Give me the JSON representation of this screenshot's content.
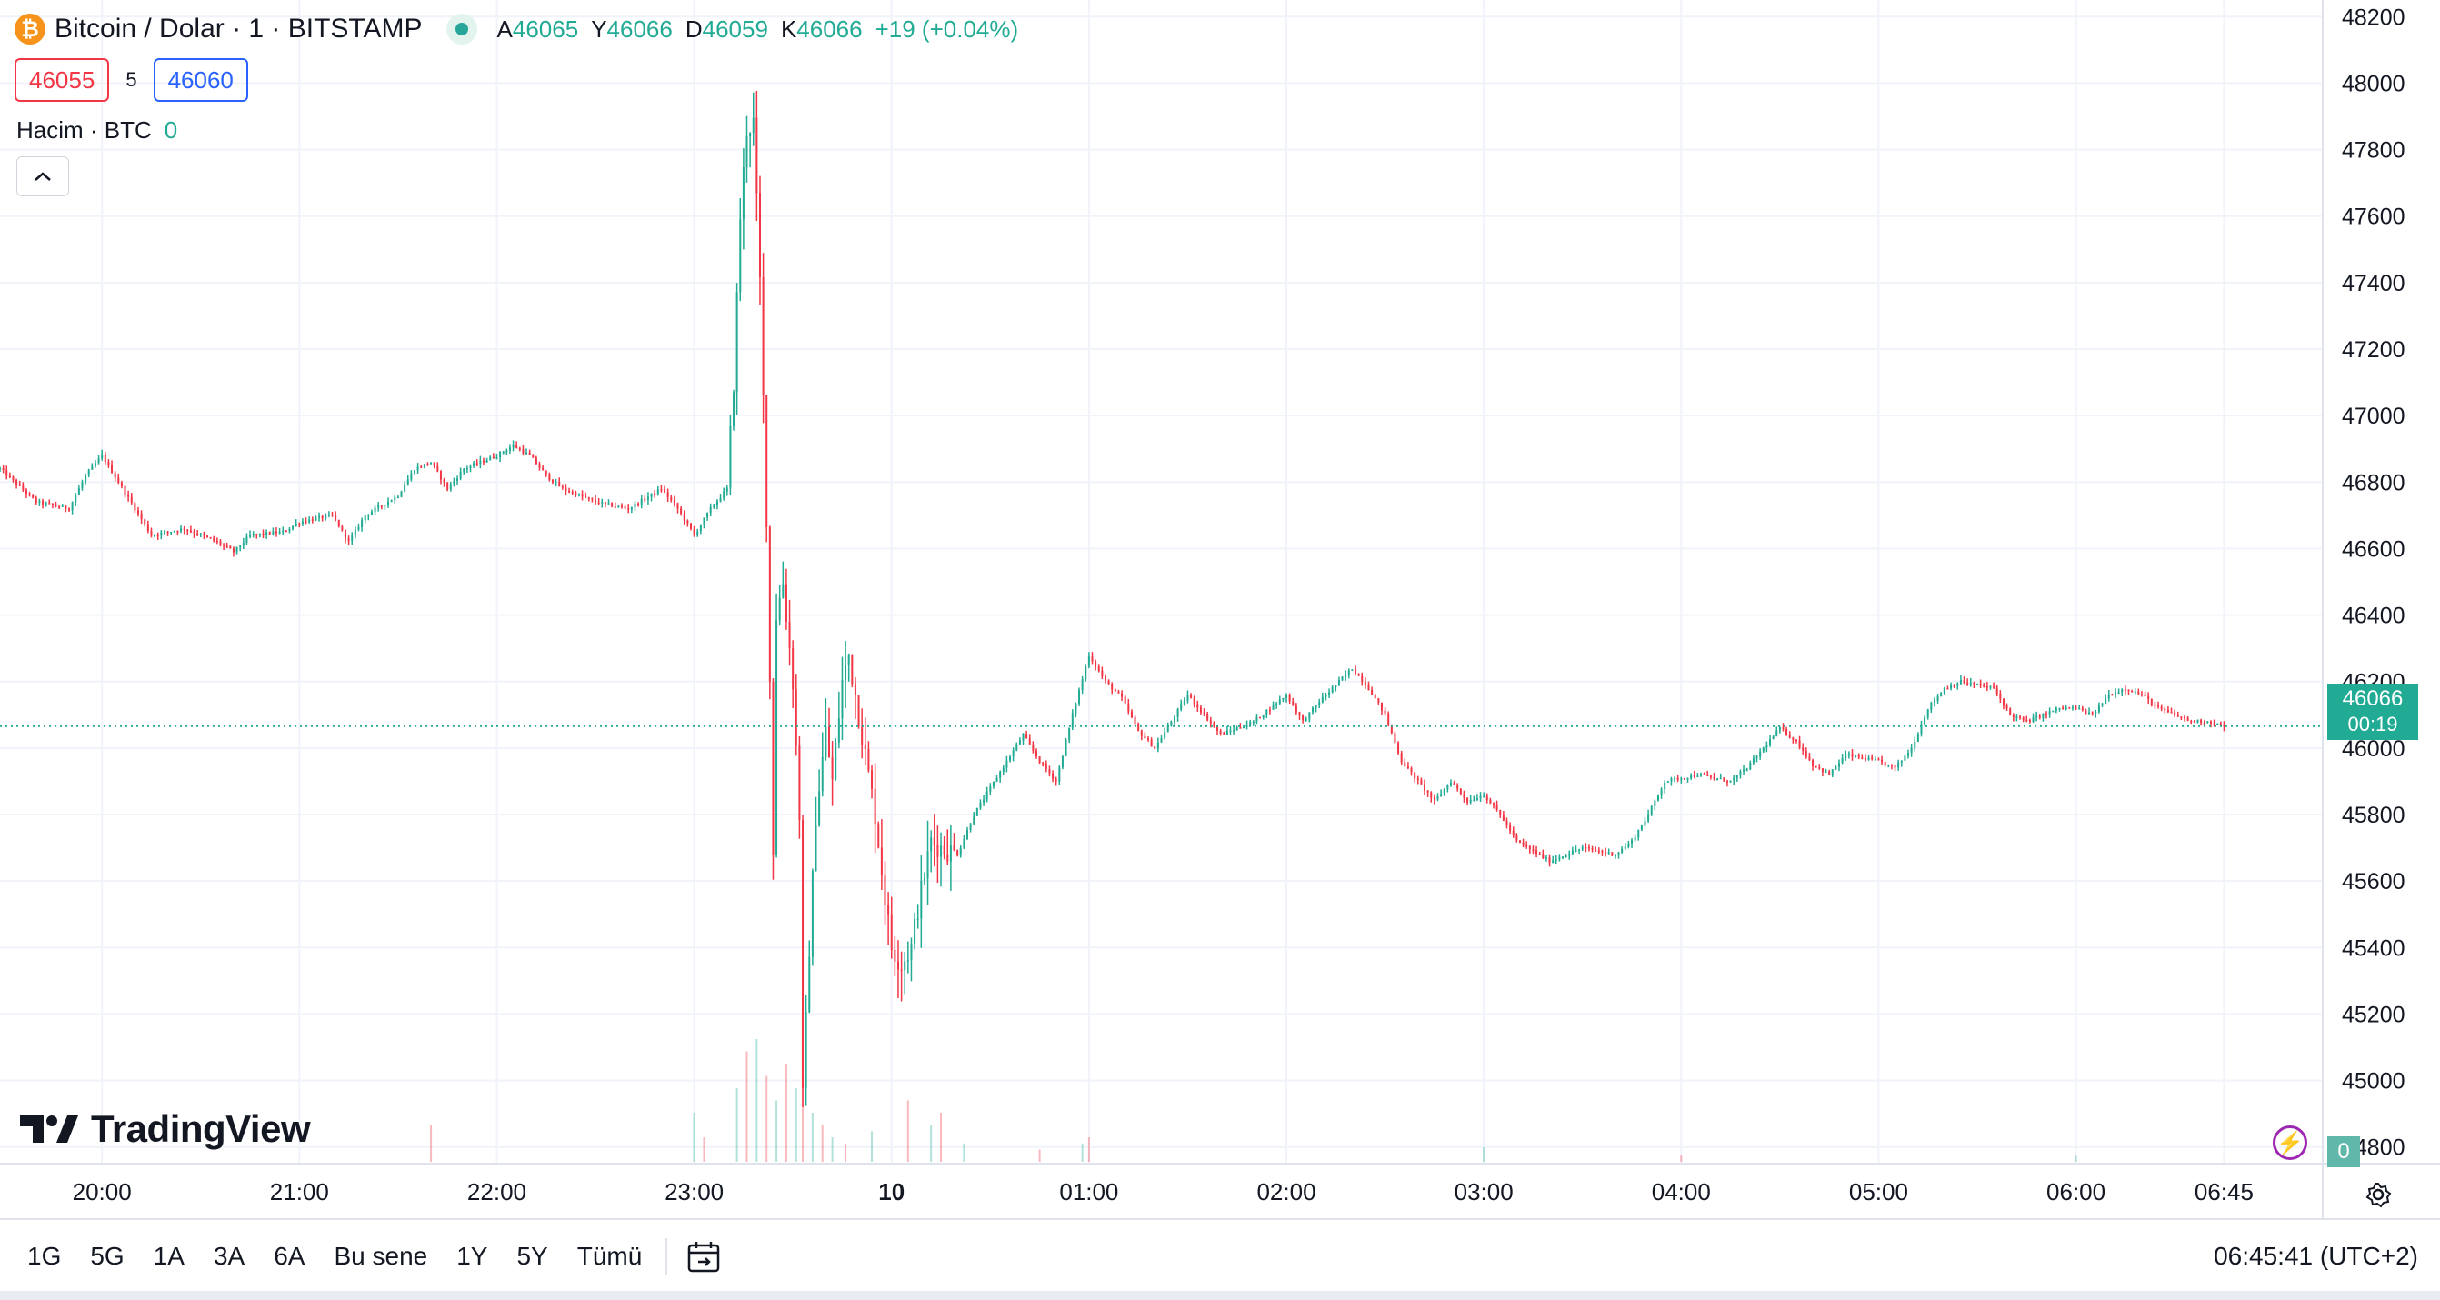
{
  "legend": {
    "symbol": "Bitcoin / Dolar · 1 · BITSTAMP",
    "symbol_icon": "bitcoin-icon",
    "open_label": "A",
    "open": "46065",
    "high_label": "Y",
    "high": "46066",
    "low_label": "D",
    "low": "46059",
    "close_label": "K",
    "close": "46066",
    "change": "+19 (+0.04%)",
    "sell_price": "46055",
    "spread": "5",
    "buy_price": "46060"
  },
  "volume_legend": {
    "label": "Hacim · BTC",
    "value": "0"
  },
  "collapse_icon": "chevron-up-icon",
  "logo": "TradingView",
  "price_label": {
    "value": "46066",
    "countdown": "00:19"
  },
  "volume_badge": "0",
  "range_buttons": [
    "1G",
    "5G",
    "1A",
    "3A",
    "6A",
    "Bu sene",
    "1Y",
    "5Y",
    "Tümü"
  ],
  "clock": "06:45:41 (UTC+2)",
  "colors": {
    "up": "#22ab94",
    "down": "#f23645",
    "grid": "#f0f3fa",
    "last_line": "#22ab94"
  },
  "chart_data": {
    "type": "candlestick",
    "symbol": "Bitcoin / Dolar",
    "exchange": "BITSTAMP",
    "interval": "1",
    "ylim": [
      44750,
      48250
    ],
    "y_ticks": [
      44800,
      45000,
      45200,
      45400,
      45600,
      45800,
      46000,
      46200,
      46400,
      46600,
      46800,
      47000,
      47200,
      47400,
      47600,
      47800,
      48000,
      48200
    ],
    "x_tick_labels": [
      "20:00",
      "21:00",
      "22:00",
      "23:00",
      "10",
      "01:00",
      "02:00",
      "03:00",
      "04:00",
      "05:00",
      "06:00",
      "06:45"
    ],
    "x_tick_minutes": [
      0,
      60,
      120,
      180,
      240,
      300,
      360,
      420,
      480,
      540,
      600,
      645
    ],
    "x_range_minutes": [
      -31,
      675
    ],
    "last_price": 46066,
    "price_anchors": [
      [
        -31,
        46840
      ],
      [
        -20,
        46740
      ],
      [
        -10,
        46720
      ],
      [
        -5,
        46820
      ],
      [
        0,
        46880
      ],
      [
        5,
        46800
      ],
      [
        10,
        46720
      ],
      [
        15,
        46640
      ],
      [
        20,
        46650
      ],
      [
        25,
        46660
      ],
      [
        35,
        46620
      ],
      [
        40,
        46590
      ],
      [
        45,
        46640
      ],
      [
        55,
        46650
      ],
      [
        60,
        46680
      ],
      [
        70,
        46700
      ],
      [
        75,
        46620
      ],
      [
        80,
        46700
      ],
      [
        90,
        46760
      ],
      [
        95,
        46840
      ],
      [
        100,
        46860
      ],
      [
        105,
        46780
      ],
      [
        110,
        46840
      ],
      [
        120,
        46880
      ],
      [
        125,
        46910
      ],
      [
        130,
        46880
      ],
      [
        135,
        46820
      ],
      [
        140,
        46780
      ],
      [
        150,
        46740
      ],
      [
        160,
        46720
      ],
      [
        170,
        46780
      ],
      [
        175,
        46720
      ],
      [
        180,
        46640
      ],
      [
        185,
        46720
      ],
      [
        190,
        46780
      ],
      [
        192,
        47100
      ],
      [
        194,
        47600
      ],
      [
        196,
        47860
      ],
      [
        198,
        47880
      ],
      [
        200,
        47400
      ],
      [
        202,
        46700
      ],
      [
        204,
        45700
      ],
      [
        205,
        46400
      ],
      [
        207,
        46500
      ],
      [
        210,
        46200
      ],
      [
        212,
        45800
      ],
      [
        213,
        44950
      ],
      [
        215,
        45400
      ],
      [
        217,
        45800
      ],
      [
        220,
        46050
      ],
      [
        222,
        45900
      ],
      [
        225,
        46200
      ],
      [
        227,
        46280
      ],
      [
        230,
        46100
      ],
      [
        235,
        45800
      ],
      [
        238,
        45550
      ],
      [
        240,
        45400
      ],
      [
        243,
        45350
      ],
      [
        246,
        45400
      ],
      [
        248,
        45520
      ],
      [
        252,
        45720
      ],
      [
        255,
        45700
      ],
      [
        260,
        45680
      ],
      [
        265,
        45800
      ],
      [
        270,
        45880
      ],
      [
        275,
        45960
      ],
      [
        280,
        46040
      ],
      [
        285,
        45960
      ],
      [
        290,
        45900
      ],
      [
        295,
        46100
      ],
      [
        300,
        46280
      ],
      [
        305,
        46200
      ],
      [
        310,
        46150
      ],
      [
        315,
        46050
      ],
      [
        320,
        46000
      ],
      [
        330,
        46160
      ],
      [
        335,
        46100
      ],
      [
        340,
        46040
      ],
      [
        350,
        46080
      ],
      [
        360,
        46160
      ],
      [
        365,
        46080
      ],
      [
        370,
        46140
      ],
      [
        380,
        46240
      ],
      [
        385,
        46180
      ],
      [
        390,
        46100
      ],
      [
        395,
        45960
      ],
      [
        400,
        45900
      ],
      [
        405,
        45840
      ],
      [
        410,
        45900
      ],
      [
        415,
        45840
      ],
      [
        420,
        45860
      ],
      [
        425,
        45800
      ],
      [
        430,
        45720
      ],
      [
        440,
        45660
      ],
      [
        450,
        45700
      ],
      [
        460,
        45680
      ],
      [
        465,
        45720
      ],
      [
        470,
        45800
      ],
      [
        475,
        45900
      ],
      [
        485,
        45920
      ],
      [
        495,
        45900
      ],
      [
        500,
        45940
      ],
      [
        505,
        46000
      ],
      [
        510,
        46060
      ],
      [
        515,
        46020
      ],
      [
        520,
        45950
      ],
      [
        525,
        45920
      ],
      [
        530,
        45980
      ],
      [
        540,
        45960
      ],
      [
        545,
        45940
      ],
      [
        550,
        46000
      ],
      [
        555,
        46120
      ],
      [
        560,
        46180
      ],
      [
        565,
        46200
      ],
      [
        575,
        46180
      ],
      [
        580,
        46100
      ],
      [
        585,
        46080
      ],
      [
        595,
        46120
      ],
      [
        600,
        46120
      ],
      [
        605,
        46100
      ],
      [
        610,
        46160
      ],
      [
        615,
        46180
      ],
      [
        620,
        46160
      ],
      [
        625,
        46120
      ],
      [
        630,
        46100
      ],
      [
        635,
        46080
      ],
      [
        640,
        46080
      ],
      [
        645,
        46066
      ]
    ],
    "volume_spikes": [
      [
        100,
        0.3
      ],
      [
        180,
        0.4
      ],
      [
        183,
        0.2
      ],
      [
        193,
        0.6
      ],
      [
        196,
        0.9
      ],
      [
        199,
        1.0
      ],
      [
        202,
        0.7
      ],
      [
        205,
        0.5
      ],
      [
        208,
        0.8
      ],
      [
        211,
        0.6
      ],
      [
        213,
        1.0
      ],
      [
        216,
        0.4
      ],
      [
        219,
        0.3
      ],
      [
        222,
        0.2
      ],
      [
        226,
        0.15
      ],
      [
        234,
        0.25
      ],
      [
        245,
        0.5
      ],
      [
        252,
        0.3
      ],
      [
        255,
        0.4
      ],
      [
        262,
        0.15
      ],
      [
        285,
        0.1
      ],
      [
        298,
        0.15
      ],
      [
        300,
        0.2
      ],
      [
        420,
        0.12
      ],
      [
        480,
        0.05
      ],
      [
        600,
        0.05
      ]
    ]
  }
}
